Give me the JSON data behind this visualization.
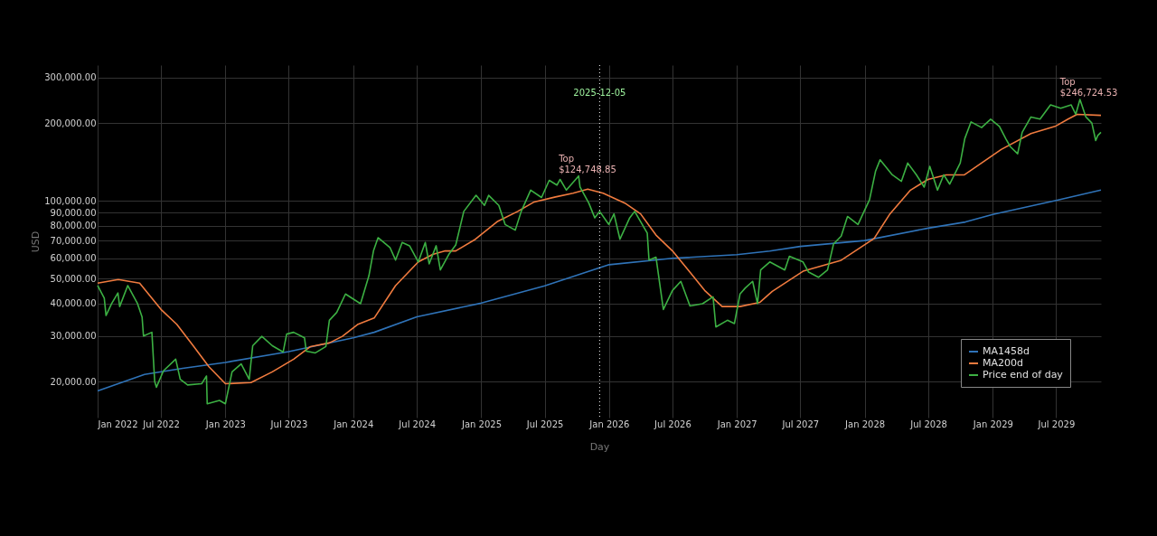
{
  "chart_data": {
    "type": "line",
    "xlabel": "Day",
    "ylabel": "USD",
    "log": "y",
    "grid": true,
    "legend": "bottom right",
    "line_style": "solid",
    "marker": "none",
    "xlim": [
      "2022-01-01",
      "2029-11-06"
    ],
    "xticks": [
      {
        "value": "2022-01-01",
        "label": "Jan 2022"
      },
      {
        "value": "2022-07-01",
        "label": "Jul 2022"
      },
      {
        "value": "2023-01-01",
        "label": "Jan 2023"
      },
      {
        "value": "2023-07-01",
        "label": "Jul 2023"
      },
      {
        "value": "2024-01-01",
        "label": "Jan 2024"
      },
      {
        "value": "2024-07-01",
        "label": "Jul 2024"
      },
      {
        "value": "2025-01-01",
        "label": "Jan 2025"
      },
      {
        "value": "2025-07-01",
        "label": "Jul 2025"
      },
      {
        "value": "2026-01-01",
        "label": "Jan 2026"
      },
      {
        "value": "2026-07-01",
        "label": "Jul 2026"
      },
      {
        "value": "2027-01-01",
        "label": "Jan 2027"
      },
      {
        "value": "2027-07-01",
        "label": "Jul 2027"
      },
      {
        "value": "2028-01-01",
        "label": "Jan 2028"
      },
      {
        "value": "2028-07-01",
        "label": "Jul 2028"
      },
      {
        "value": "2029-01-01",
        "label": "Jan 2029"
      },
      {
        "value": "2029-07-01",
        "label": "Jul 2029"
      }
    ],
    "ylim": [
      14500,
      335000
    ],
    "yticks": [
      {
        "value": 20000,
        "label": "20,000.00"
      },
      {
        "value": 30000,
        "label": "30,000.00"
      },
      {
        "value": 40000,
        "label": "40,000.00"
      },
      {
        "value": 50000,
        "label": "50,000.00"
      },
      {
        "value": 60000,
        "label": "60,000.00"
      },
      {
        "value": 70000,
        "label": "70,000.00"
      },
      {
        "value": 80000,
        "label": "80,000.00"
      },
      {
        "value": 90000,
        "label": "90,000.00"
      },
      {
        "value": 100000,
        "label": "100,000.00"
      },
      {
        "value": 200000,
        "label": "200,000.00"
      },
      {
        "value": 300000,
        "label": "300,000.00"
      }
    ],
    "series": [
      {
        "name": "MA1458d",
        "color": "#2f73b8",
        "x": [
          "2022-01-01",
          "2022-05-15",
          "2022-09-01",
          "2023-01-01",
          "2023-07-01",
          "2024-01-01",
          "2024-03-01",
          "2024-07-01",
          "2025-01-01",
          "2025-07-01",
          "2026-01-01",
          "2026-07-01",
          "2027-01-01",
          "2027-04-05",
          "2027-07-01",
          "2028-01-01",
          "2028-07-01",
          "2028-10-15",
          "2029-01-01",
          "2029-07-01",
          "2029-11-06"
        ],
        "values": [
          18400,
          21300,
          22500,
          23700,
          26100,
          29500,
          31000,
          35600,
          40200,
          46900,
          56600,
          59900,
          61900,
          63900,
          66600,
          70200,
          78400,
          82800,
          88600,
          100300,
          110000
        ]
      },
      {
        "name": "MA200d",
        "color": "#f07b3f",
        "x": [
          "2022-01-01",
          "2022-03-01",
          "2022-05-01",
          "2022-07-01",
          "2022-08-15",
          "2022-10-01",
          "2022-11-15",
          "2023-01-01",
          "2023-03-15",
          "2023-05-15",
          "2023-07-15",
          "2023-09-01",
          "2023-10-25",
          "2023-12-01",
          "2024-01-15",
          "2024-03-01",
          "2024-05-01",
          "2024-07-05",
          "2024-08-15",
          "2024-09-20",
          "2024-10-20",
          "2024-12-15",
          "2025-02-15",
          "2025-04-15",
          "2025-06-01",
          "2025-08-01",
          "2025-09-20",
          "2025-11-01",
          "2025-12-15",
          "2026-02-15",
          "2026-04-01",
          "2026-05-15",
          "2026-07-01",
          "2026-08-15",
          "2026-10-01",
          "2026-11-20",
          "2027-01-10",
          "2027-03-08",
          "2027-04-12",
          "2027-07-09",
          "2027-10-26",
          "2028-01-28",
          "2028-03-12",
          "2028-05-11",
          "2028-06-30",
          "2028-08-21",
          "2028-10-12",
          "2029-01-25",
          "2029-04-20",
          "2029-06-28",
          "2029-08-04",
          "2029-08-30",
          "2029-11-06"
        ],
        "values": [
          48000,
          49600,
          48000,
          38000,
          33300,
          27500,
          22800,
          19600,
          19800,
          21800,
          24400,
          27300,
          28200,
          29900,
          33300,
          35200,
          47000,
          58000,
          62000,
          64000,
          64000,
          71000,
          83000,
          91000,
          99000,
          103500,
          107000,
          111000,
          107000,
          98000,
          89000,
          73700,
          64000,
          54000,
          45000,
          39000,
          39000,
          40500,
          44600,
          53400,
          58900,
          71500,
          88500,
          110000,
          121000,
          126000,
          126000,
          158000,
          182000,
          194000,
          207000,
          216000,
          214000
        ]
      },
      {
        "name": "Price end of day",
        "color": "#3cb043",
        "x": [
          "2022-01-01",
          "2022-01-20",
          "2022-01-25",
          "2022-02-10",
          "2022-02-28",
          "2022-03-05",
          "2022-03-28",
          "2022-04-25",
          "2022-05-08",
          "2022-05-12",
          "2022-06-05",
          "2022-06-13",
          "2022-06-18",
          "2022-07-08",
          "2022-08-12",
          "2022-08-25",
          "2022-09-15",
          "2022-10-25",
          "2022-11-08",
          "2022-11-10",
          "2022-12-15",
          "2023-01-01",
          "2023-01-20",
          "2023-02-15",
          "2023-03-10",
          "2023-03-20",
          "2023-04-15",
          "2023-05-15",
          "2023-06-15",
          "2023-06-25",
          "2023-07-15",
          "2023-08-15",
          "2023-08-20",
          "2023-09-15",
          "2023-10-15",
          "2023-10-25",
          "2023-11-15",
          "2023-12-10",
          "2024-01-22",
          "2024-02-15",
          "2024-02-28",
          "2024-03-12",
          "2024-04-15",
          "2024-05-01",
          "2024-05-20",
          "2024-06-10",
          "2024-07-05",
          "2024-07-25",
          "2024-08-05",
          "2024-08-25",
          "2024-09-06",
          "2024-09-30",
          "2024-10-20",
          "2024-11-12",
          "2024-12-17",
          "2025-01-10",
          "2025-01-22",
          "2025-02-20",
          "2025-03-10",
          "2025-04-08",
          "2025-04-25",
          "2025-05-22",
          "2025-06-22",
          "2025-07-14",
          "2025-08-05",
          "2025-08-14",
          "2025-09-01",
          "2025-10-06",
          "2025-10-10",
          "2025-11-04",
          "2025-11-21",
          "2025-12-05",
          "2025-12-31",
          "2026-01-15",
          "2026-02-01",
          "2026-03-01",
          "2026-03-15",
          "2026-04-20",
          "2026-04-25",
          "2026-05-15",
          "2026-06-05",
          "2026-07-01",
          "2026-07-25",
          "2026-08-20",
          "2026-09-25",
          "2026-10-25",
          "2026-11-02",
          "2026-12-05",
          "2026-12-25",
          "2027-01-10",
          "2027-01-25",
          "2027-02-15",
          "2027-03-01",
          "2027-03-10",
          "2027-04-05",
          "2027-05-18",
          "2027-05-31",
          "2027-07-09",
          "2027-07-25",
          "2027-08-22",
          "2027-09-17",
          "2027-10-04",
          "2027-10-26",
          "2027-11-13",
          "2027-12-13",
          "2028-01-15",
          "2028-02-01",
          "2028-02-14",
          "2028-03-20",
          "2028-04-15",
          "2028-05-03",
          "2028-05-28",
          "2028-06-19",
          "2028-07-05",
          "2028-07-27",
          "2028-08-14",
          "2028-08-31",
          "2028-09-30",
          "2028-10-13",
          "2028-10-31",
          "2028-11-30",
          "2028-12-26",
          "2029-01-20",
          "2029-02-07",
          "2029-02-20",
          "2029-03-13",
          "2029-03-26",
          "2029-04-20",
          "2029-05-16",
          "2029-06-15",
          "2029-07-14",
          "2029-08-13",
          "2029-08-26",
          "2029-09-07",
          "2029-09-24",
          "2029-10-11",
          "2029-10-22",
          "2029-10-28",
          "2029-11-06"
        ],
        "values": [
          47000,
          42000,
          36000,
          40000,
          44000,
          39000,
          47000,
          40000,
          35500,
          30000,
          31000,
          20000,
          19000,
          22000,
          24400,
          20400,
          19400,
          19600,
          21000,
          16400,
          16900,
          16400,
          21800,
          23400,
          20400,
          27500,
          29900,
          27500,
          26000,
          30500,
          31000,
          29500,
          26200,
          25800,
          27300,
          34500,
          37000,
          43600,
          40000,
          51300,
          64000,
          72000,
          66000,
          59000,
          69000,
          67000,
          58000,
          69000,
          57000,
          67000,
          54000,
          62000,
          67500,
          91000,
          105000,
          96000,
          105000,
          96000,
          81000,
          77000,
          91000,
          110000,
          103000,
          120000,
          115000,
          121000,
          110000,
          124748.85,
          113000,
          98000,
          86000,
          91000,
          81000,
          89000,
          71000,
          86000,
          91000,
          75000,
          59000,
          60500,
          38000,
          45000,
          48800,
          39200,
          40000,
          42500,
          32500,
          34500,
          33500,
          43600,
          46000,
          48800,
          40000,
          54000,
          58000,
          54000,
          61000,
          58000,
          53000,
          50600,
          54000,
          68000,
          73000,
          87000,
          81000,
          101000,
          130000,
          144000,
          126000,
          119000,
          140000,
          126000,
          113000,
          136000,
          110000,
          126000,
          116000,
          140000,
          174000,
          202000,
          192000,
          207000,
          194000,
          174000,
          162000,
          152000,
          184000,
          211000,
          207000,
          235000,
          228000,
          235000,
          216000,
          246724.53,
          211000,
          200000,
          171000,
          179000,
          184000
        ]
      }
    ],
    "ref_lines": [
      {
        "axis": "x",
        "value": "2025-12-05",
        "label": "2025-12-05",
        "color": "#ffffff",
        "line_style": "dotted"
      }
    ],
    "annotations": [
      {
        "text": "Top\n$124,748.85",
        "x": "2025-10-06",
        "y": 124748.85
      },
      {
        "text": "Top\n$246,724.53",
        "x": "2029-09-07",
        "y": 246724.53
      }
    ]
  }
}
